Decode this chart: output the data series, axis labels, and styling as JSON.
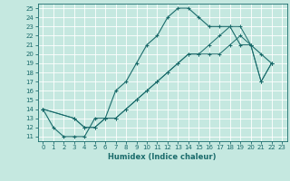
{
  "xlabel": "Humidex (Indice chaleur)",
  "bg_color": "#c5e8e0",
  "grid_color": "#b0d8d0",
  "line_color": "#1a6b6b",
  "xlim": [
    -0.5,
    23.5
  ],
  "ylim": [
    10.5,
    25.5
  ],
  "xticks": [
    0,
    1,
    2,
    3,
    4,
    5,
    6,
    7,
    8,
    9,
    10,
    11,
    12,
    13,
    14,
    15,
    16,
    17,
    18,
    19,
    20,
    21,
    22,
    23
  ],
  "yticks": [
    11,
    12,
    13,
    14,
    15,
    16,
    17,
    18,
    19,
    20,
    21,
    22,
    23,
    24,
    25
  ],
  "line1_x": [
    0,
    1,
    2,
    3,
    4,
    5,
    6,
    7,
    8,
    9,
    10,
    11,
    12,
    13,
    14,
    15,
    16,
    17,
    18,
    19,
    20,
    21,
    22
  ],
  "line1_y": [
    14,
    12,
    11,
    11,
    11,
    13,
    13,
    16,
    17,
    19,
    21,
    22,
    24,
    25,
    25,
    24,
    23,
    23,
    23,
    21,
    21,
    20,
    19
  ],
  "line2_x": [
    0,
    3,
    4,
    5,
    6,
    7,
    8,
    9,
    10,
    11,
    12,
    13,
    14,
    15,
    16,
    17,
    18,
    19,
    20,
    21,
    22
  ],
  "line2_y": [
    14,
    13,
    12,
    12,
    13,
    13,
    14,
    15,
    16,
    17,
    18,
    19,
    20,
    20,
    21,
    22,
    23,
    23,
    21,
    17,
    19
  ],
  "line3_x": [
    0,
    3,
    4,
    5,
    6,
    7,
    8,
    9,
    10,
    11,
    12,
    13,
    14,
    15,
    16,
    17,
    18,
    19,
    20,
    21,
    22
  ],
  "line3_y": [
    14,
    13,
    12,
    12,
    13,
    13,
    14,
    15,
    16,
    17,
    18,
    19,
    20,
    20,
    20,
    20,
    21,
    22,
    21,
    17,
    19
  ]
}
